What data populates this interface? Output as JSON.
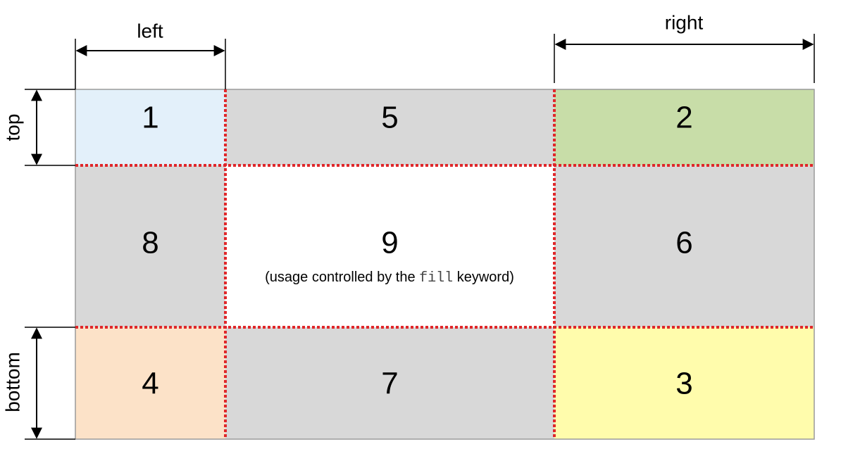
{
  "colors": {
    "region_1": "#e3f0fa",
    "region_2": "#c8dda8",
    "region_3": "#fffcac",
    "region_4": "#fce2c8",
    "edge_region": "#d8d8d8",
    "center_region": "#ffffff",
    "slice_line": "#e0272a",
    "outline": "#9a9a9a"
  },
  "regions": [
    {
      "id": "1",
      "label": "1",
      "kind": "corner",
      "color": "region_1"
    },
    {
      "id": "5",
      "label": "5",
      "kind": "edge",
      "color": "edge_region"
    },
    {
      "id": "2",
      "label": "2",
      "kind": "corner",
      "color": "region_2"
    },
    {
      "id": "8",
      "label": "8",
      "kind": "edge",
      "color": "edge_region"
    },
    {
      "id": "9",
      "label": "9",
      "kind": "center",
      "color": "center_region"
    },
    {
      "id": "6",
      "label": "6",
      "kind": "edge",
      "color": "edge_region"
    },
    {
      "id": "4",
      "label": "4",
      "kind": "corner",
      "color": "region_4"
    },
    {
      "id": "7",
      "label": "7",
      "kind": "edge",
      "color": "edge_region"
    },
    {
      "id": "3",
      "label": "3",
      "kind": "corner",
      "color": "region_3"
    }
  ],
  "center_note": {
    "before": "(usage controlled by the ",
    "keyword": "fill",
    "after": " keyword)"
  },
  "dimensions": {
    "left": "left",
    "right": "right",
    "top": "top",
    "bottom": "bottom"
  }
}
